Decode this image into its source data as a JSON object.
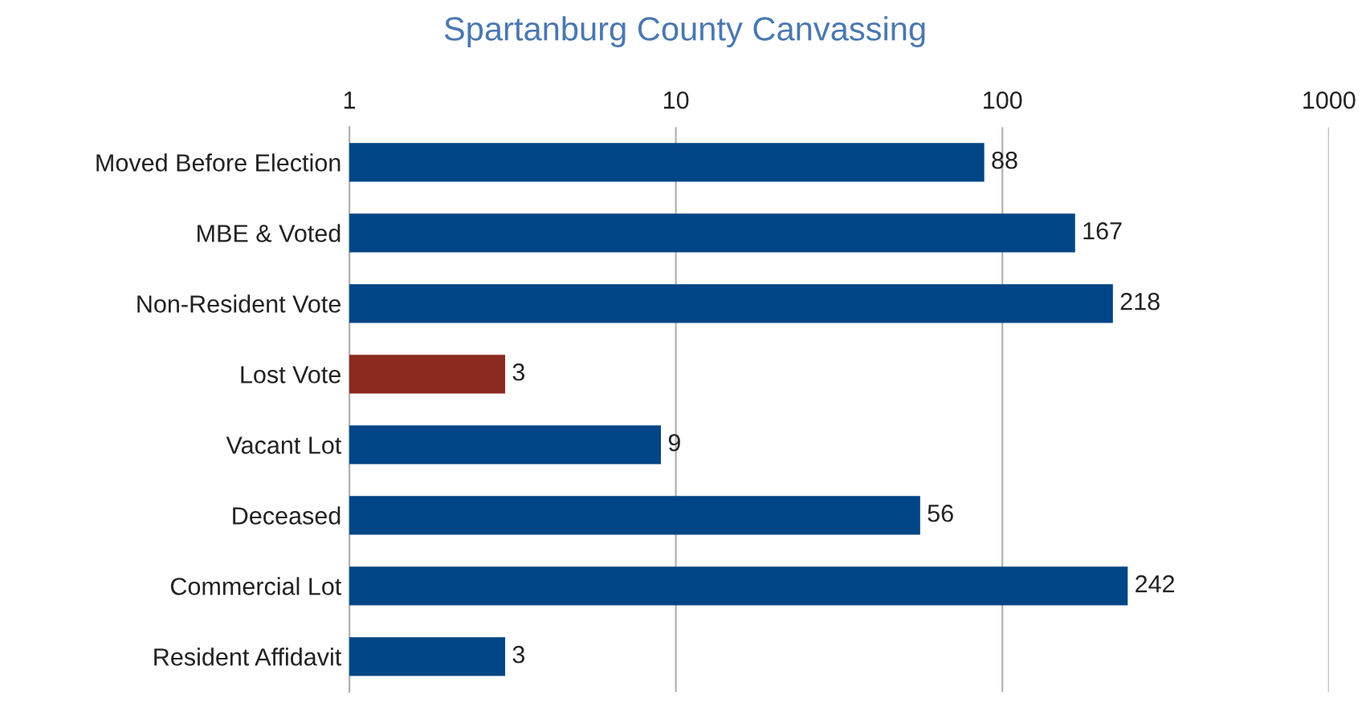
{
  "chart_data": {
    "type": "bar",
    "orientation": "horizontal",
    "title": "Spartanburg County Canvassing",
    "categories": [
      "Moved Before Election",
      "MBE & Voted",
      "Non-Resident Vote",
      "Lost Vote",
      "Vacant Lot",
      "Deceased",
      "Commercial Lot",
      "Resident Affidavit"
    ],
    "values": [
      88,
      167,
      218,
      3,
      9,
      56,
      242,
      3
    ],
    "colors": [
      "#004586",
      "#004586",
      "#004586",
      "#8b2a1e",
      "#004586",
      "#004586",
      "#004586",
      "#004586"
    ],
    "log": "x",
    "xlim": [
      1,
      1000
    ],
    "xticks": [
      1,
      10,
      100,
      1000
    ],
    "grid": "x",
    "data_labels": true
  }
}
